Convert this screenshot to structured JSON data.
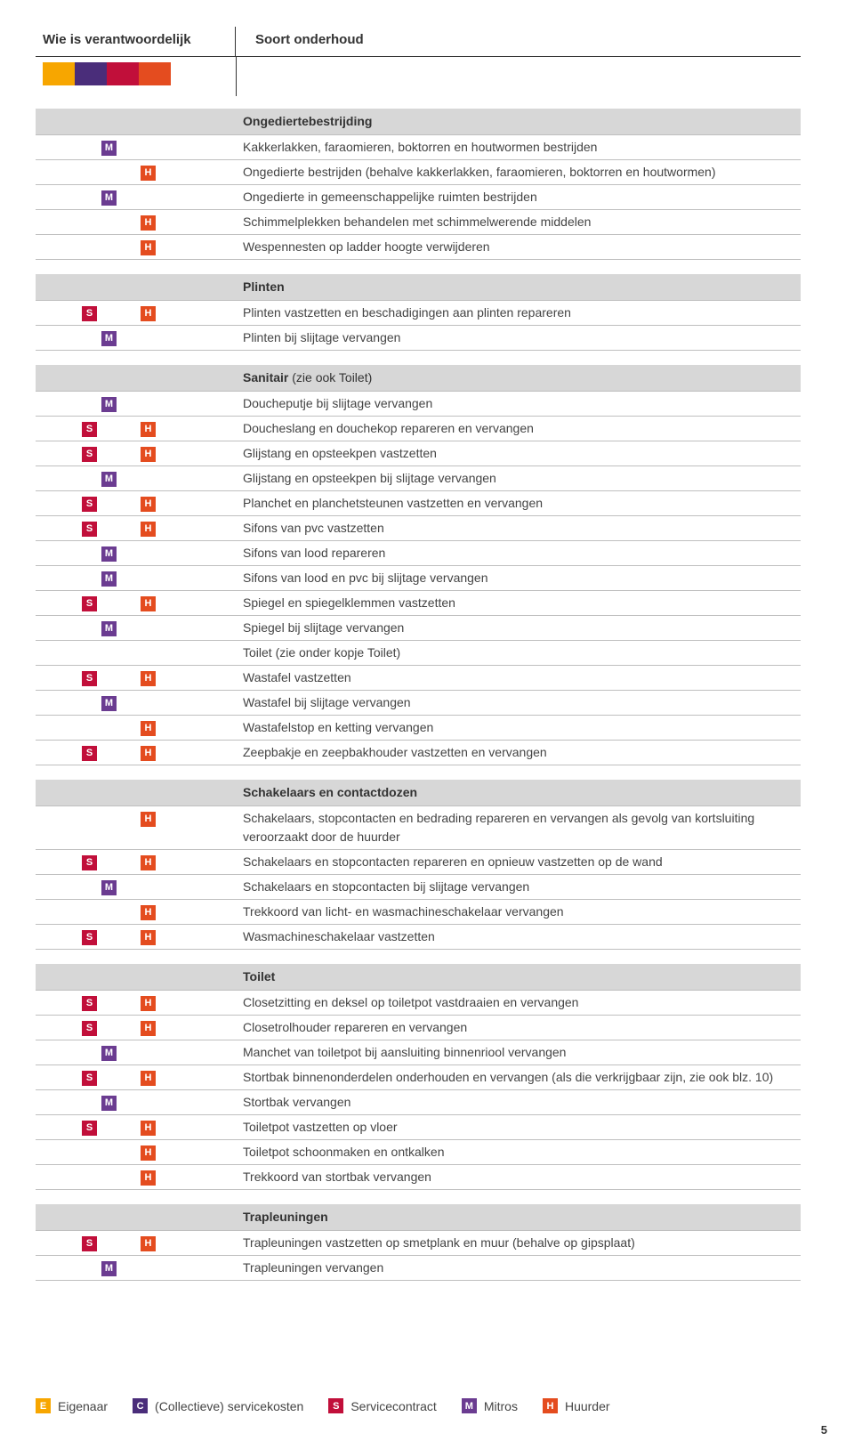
{
  "header": {
    "left": "Wie is verantwoordelijk",
    "right": "Soort onderhoud"
  },
  "palette": [
    "#f7a600",
    "#4a2d7a",
    "#c10f3a",
    "#e44c1f"
  ],
  "badges": {
    "E": {
      "label": "E",
      "color": "#f7a600"
    },
    "C": {
      "label": "C",
      "color": "#4a2d7a"
    },
    "S": {
      "label": "S",
      "color": "#c10f3a"
    },
    "M": {
      "label": "M",
      "color": "#6b3c91"
    },
    "H": {
      "label": "H",
      "color": "#e44c1f"
    }
  },
  "legend": [
    {
      "badge": "E",
      "text": "Eigenaar"
    },
    {
      "badge": "C",
      "text": "(Collectieve) servicekosten"
    },
    {
      "badge": "S",
      "text": "Servicecontract"
    },
    {
      "badge": "M",
      "text": "Mitros"
    },
    {
      "badge": "H",
      "text": "Huurder"
    }
  ],
  "page_number": "5",
  "sections": [
    {
      "title": "Ongediertebestrijding",
      "rows": [
        {
          "icons": [
            "M"
          ],
          "text": "Kakkerlakken, faraomieren, boktorren en houtwormen bestrijden"
        },
        {
          "icons": [
            "H"
          ],
          "text": "Ongedierte bestrijden (behalve kakkerlakken, faraomieren, boktorren en houtwormen)"
        },
        {
          "icons": [
            "M"
          ],
          "text": "Ongedierte in gemeenschappelijke ruimten bestrijden"
        },
        {
          "icons": [
            "H"
          ],
          "text": "Schimmelplekken behandelen met schimmelwerende middelen"
        },
        {
          "icons": [
            "H"
          ],
          "text": "Wespennesten op ladder hoogte verwijderen"
        }
      ]
    },
    {
      "title": "Plinten",
      "rows": [
        {
          "icons": [
            "S",
            "H"
          ],
          "text": "Plinten vastzetten en beschadigingen aan plinten repareren"
        },
        {
          "icons": [
            "M"
          ],
          "text": "Plinten bij slijtage vervangen"
        }
      ]
    },
    {
      "title": "Sanitair",
      "title_note": "(zie ook Toilet)",
      "rows": [
        {
          "icons": [
            "M"
          ],
          "text": "Doucheputje bij slijtage vervangen"
        },
        {
          "icons": [
            "S",
            "H"
          ],
          "text": "Doucheslang en  douchekop repareren en vervangen"
        },
        {
          "icons": [
            "S",
            "H"
          ],
          "text": "Glijstang en opsteekpen vastzetten"
        },
        {
          "icons": [
            "M"
          ],
          "text": "Glijstang en opsteekpen bij slijtage vervangen"
        },
        {
          "icons": [
            "S",
            "H"
          ],
          "text": "Planchet en planchetsteunen vastzetten en vervangen"
        },
        {
          "icons": [
            "S",
            "H"
          ],
          "text": "Sifons van  pvc vastzetten"
        },
        {
          "icons": [
            "M"
          ],
          "text": "Sifons van lood repareren"
        },
        {
          "icons": [
            "M"
          ],
          "text": "Sifons van lood en pvc bij slijtage vervangen"
        },
        {
          "icons": [
            "S",
            "H"
          ],
          "text": "Spiegel en spiegelklemmen vastzetten"
        },
        {
          "icons": [
            "M"
          ],
          "text": "Spiegel bij slijtage vervangen"
        },
        {
          "icons": [],
          "text": "Toilet (zie onder kopje Toilet)"
        },
        {
          "icons": [
            "S",
            "H"
          ],
          "text": "Wastafel vastzetten"
        },
        {
          "icons": [
            "M"
          ],
          "text": "Wastafel bij slijtage vervangen"
        },
        {
          "icons": [
            "H"
          ],
          "text": "Wastafelstop en ketting vervangen"
        },
        {
          "icons": [
            "S",
            "H"
          ],
          "text": "Zeepbakje en zeepbakhouder vastzetten en vervangen"
        }
      ]
    },
    {
      "title": "Schakelaars en contactdozen",
      "rows": [
        {
          "icons": [
            "H"
          ],
          "text": "Schakelaars, stopcontacten en bedrading repareren en vervangen als gevolg van kortsluiting veroorzaakt door de huurder"
        },
        {
          "icons": [
            "S",
            "H"
          ],
          "text": "Schakelaars en stopcontacten repareren en opnieuw vastzetten op de wand"
        },
        {
          "icons": [
            "M"
          ],
          "text": "Schakelaars en stopcontacten bij slijtage vervangen"
        },
        {
          "icons": [
            "H"
          ],
          "text": "Trekkoord van licht- en wasmachineschakelaar vervangen"
        },
        {
          "icons": [
            "S",
            "H"
          ],
          "text": "Wasmachineschakelaar vastzetten"
        }
      ]
    },
    {
      "title": "Toilet",
      "rows": [
        {
          "icons": [
            "S",
            "H"
          ],
          "text": "Closetzitting en deksel op toiletpot vastdraaien en vervangen"
        },
        {
          "icons": [
            "S",
            "H"
          ],
          "text": "Closetrolhouder repareren en vervangen"
        },
        {
          "icons": [
            "M"
          ],
          "text": "Manchet van toiletpot bij aansluiting binnenriool vervangen"
        },
        {
          "icons": [
            "S",
            "H"
          ],
          "text": "Stortbak binnenonderdelen onderhouden en vervangen (als die verkrijgbaar zijn, zie ook blz. 10)"
        },
        {
          "icons": [
            "M"
          ],
          "text": "Stortbak vervangen"
        },
        {
          "icons": [
            "S",
            "H"
          ],
          "text": "Toiletpot vastzetten op vloer"
        },
        {
          "icons": [
            "H"
          ],
          "text": "Toiletpot schoonmaken en ontkalken"
        },
        {
          "icons": [
            "H"
          ],
          "text": "Trekkoord van stortbak vervangen"
        }
      ]
    },
    {
      "title": "Trapleuningen",
      "rows": [
        {
          "icons": [
            "S",
            "H"
          ],
          "text": "Trapleuningen vastzetten op smetplank en muur (behalve op gipsplaat)"
        },
        {
          "icons": [
            "M"
          ],
          "text": "Trapleuningen vervangen"
        }
      ]
    }
  ]
}
